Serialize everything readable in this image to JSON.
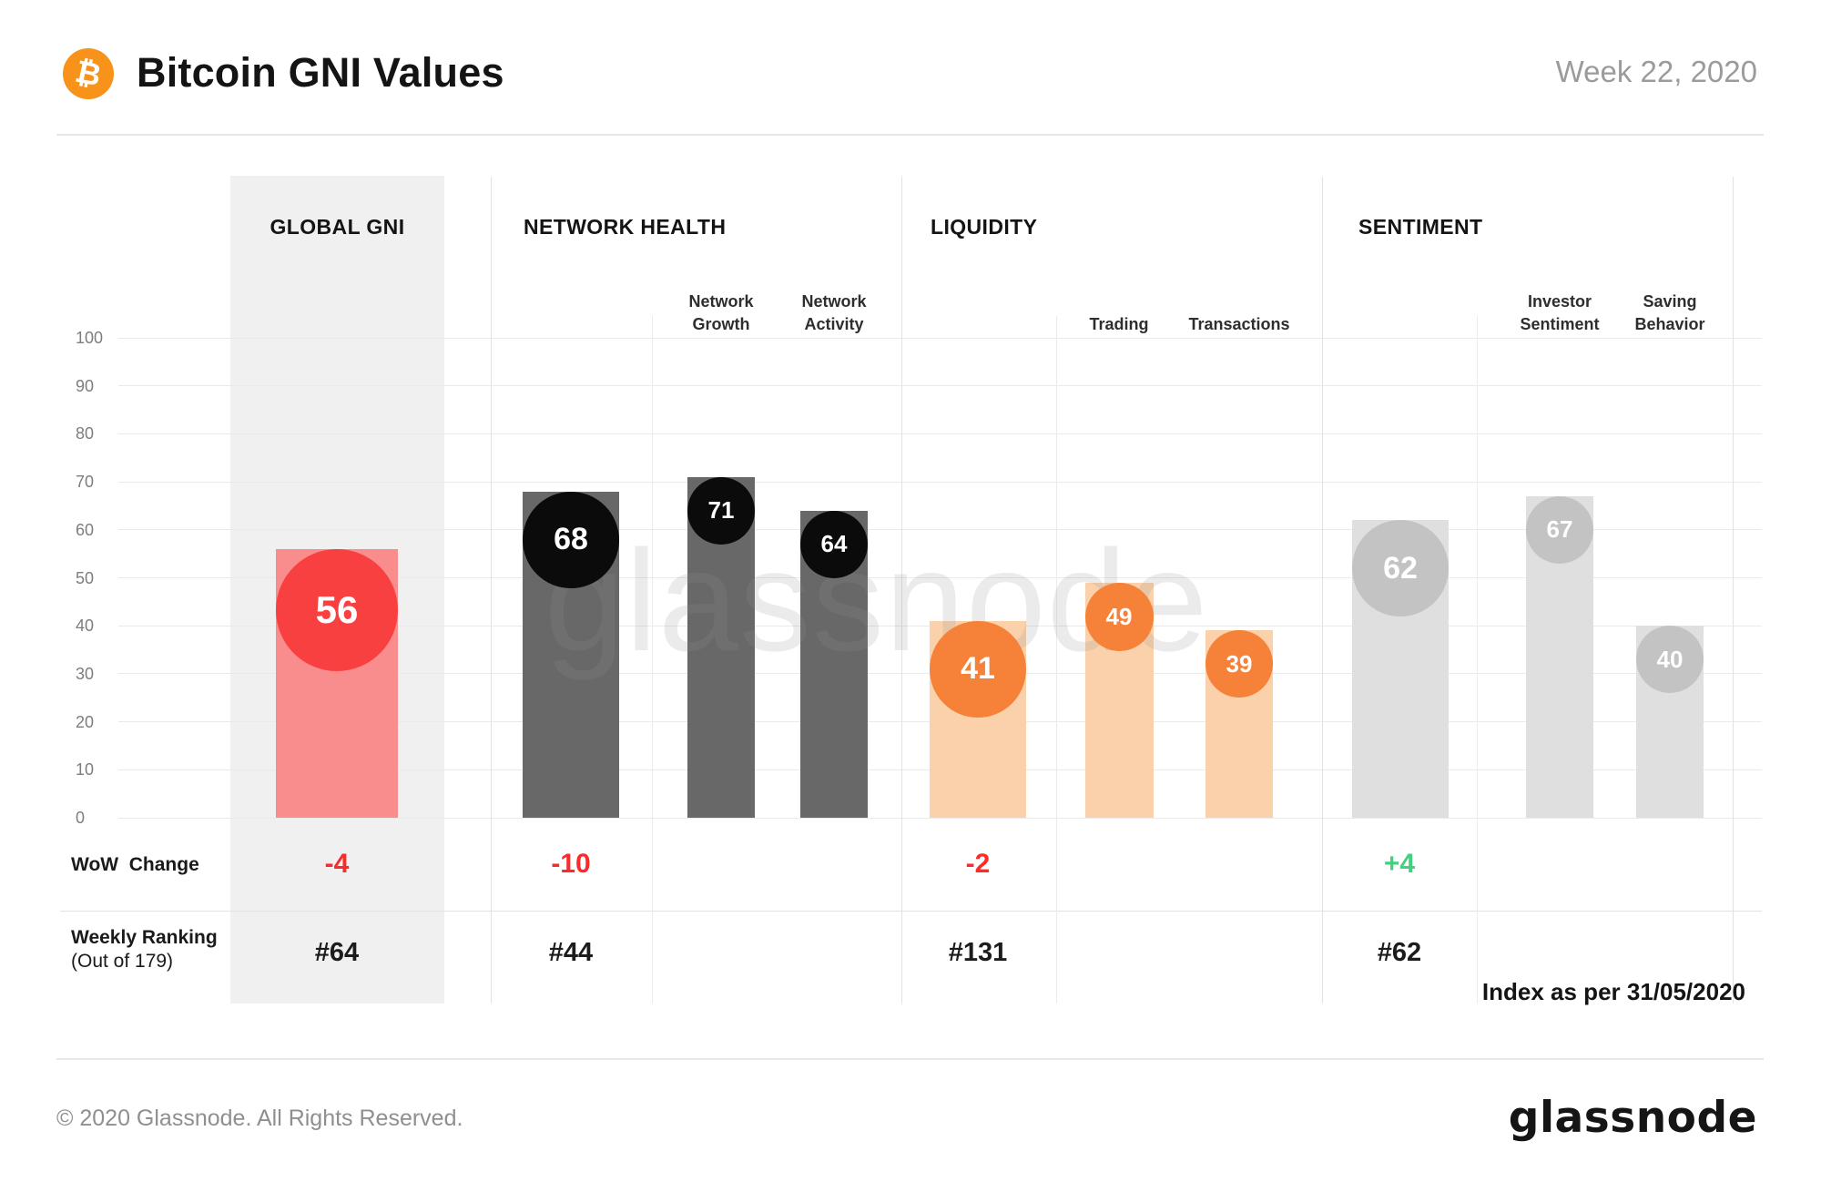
{
  "header": {
    "title": "Bitcoin GNI Values",
    "week": "Week 22, 2020",
    "logo_symbol": "₿"
  },
  "watermark": "glassnode",
  "rows": {
    "wow_label": "WoW  Change",
    "ranking_label": "Weekly Ranking",
    "ranking_sublabel": "(Out of 179)"
  },
  "footnote": "Index as per 31/05/2020",
  "footer": {
    "copyright": "© 2020 Glassnode. All Rights Reserved.",
    "logo_text": "glassnode"
  },
  "colors": {
    "bitcoin_orange": "#f7931a",
    "negative": "#fb2b2b",
    "positive": "#42d17f",
    "sections": [
      {
        "bubble": "#f94040",
        "bar": "#f98d8d"
      },
      {
        "bubble": "#0b0b0b",
        "bar": "#686868"
      },
      {
        "bubble": "#f58238",
        "bar": "#fbd1ac"
      },
      {
        "bubble": "#c3c3c3",
        "bar": "#dfdfdf"
      }
    ]
  },
  "chart_data": {
    "type": "bar",
    "title": "Bitcoin GNI Values",
    "period": "Week 22, 2020",
    "ylim": [
      0,
      100
    ],
    "yticks": [
      0,
      10,
      20,
      30,
      40,
      50,
      60,
      70,
      80,
      90,
      100
    ],
    "grid": true,
    "footnote": "Index as per 31/05/2020",
    "groups": [
      {
        "title": "GLOBAL GNI",
        "wow_change": "-4",
        "trend": "negative",
        "weekly_ranking": "#64",
        "bars": [
          {
            "label": "Global GNI",
            "value": 56,
            "kind": "main"
          }
        ]
      },
      {
        "title": "NETWORK HEALTH",
        "wow_change": "-10",
        "trend": "negative",
        "weekly_ranking": "#44",
        "bars": [
          {
            "label": "Network Health",
            "value": 68,
            "kind": "main"
          },
          {
            "label": "Network Growth",
            "value": 71,
            "kind": "sub"
          },
          {
            "label": "Network Activity",
            "value": 64,
            "kind": "sub"
          }
        ]
      },
      {
        "title": "LIQUIDITY",
        "wow_change": "-2",
        "trend": "negative",
        "weekly_ranking": "#131",
        "bars": [
          {
            "label": "Liquidity",
            "value": 41,
            "kind": "main"
          },
          {
            "label": "Trading",
            "value": 49,
            "kind": "sub"
          },
          {
            "label": "Transactions",
            "value": 39,
            "kind": "sub"
          }
        ]
      },
      {
        "title": "SENTIMENT",
        "wow_change": "+4",
        "trend": "positive",
        "weekly_ranking": "#62",
        "bars": [
          {
            "label": "Sentiment",
            "value": 62,
            "kind": "main"
          },
          {
            "label": "Investor Sentiment",
            "value": 67,
            "kind": "sub"
          },
          {
            "label": "Saving Behavior",
            "value": 40,
            "kind": "sub"
          }
        ]
      }
    ]
  }
}
